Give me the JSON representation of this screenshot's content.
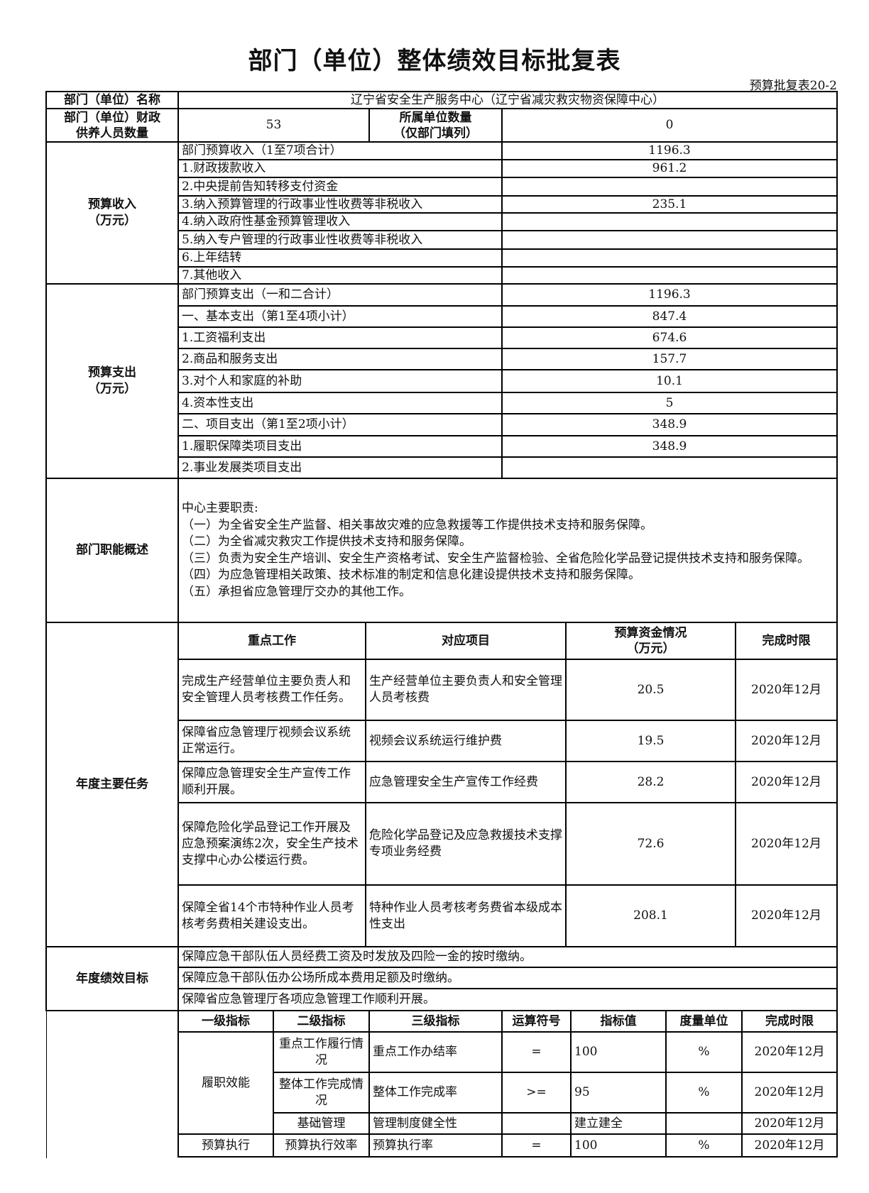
{
  "title": "部门（单位）整体绩效目标批复表",
  "form_no": "预算批复表20-2",
  "dept": {
    "name_label": "部门（单位）名称",
    "name_value": "辽宁省安全生产服务中心（辽宁省减灾救灾物资保障中心）",
    "staff_label_1": "部门（单位）财政",
    "staff_label_2": "供养人员数量",
    "staff_value": "53",
    "sub_label_1": "所属单位数量",
    "sub_label_2": "（仅部门填列）",
    "sub_value": "0"
  },
  "income": {
    "label_1": "预算收入",
    "label_2": "（万元）",
    "rows": [
      {
        "name": "部门预算收入（1至7项合计）",
        "value": "1196.3"
      },
      {
        "name": "1.财政拨款收入",
        "value": "961.2"
      },
      {
        "name": "2.中央提前告知转移支付资金",
        "value": ""
      },
      {
        "name": "3.纳入预算管理的行政事业性收费等非税收入",
        "value": "235.1"
      },
      {
        "name": "4.纳入政府性基金预算管理收入",
        "value": ""
      },
      {
        "name": "5.纳入专户管理的行政事业性收费等非税收入",
        "value": ""
      },
      {
        "name": "6.上年结转",
        "value": ""
      },
      {
        "name": "7.其他收入",
        "value": ""
      }
    ]
  },
  "expense": {
    "label_1": "预算支出",
    "label_2": "（万元）",
    "rows": [
      {
        "name": "部门预算支出（一和二合计）",
        "value": "1196.3"
      },
      {
        "name": "一、基本支出（第1至4项小计）",
        "value": "847.4"
      },
      {
        "name": "1.工资福利支出",
        "value": "674.6"
      },
      {
        "name": "2.商品和服务支出",
        "value": "157.7"
      },
      {
        "name": "3.对个人和家庭的补助",
        "value": "10.1"
      },
      {
        "name": "4.资本性支出",
        "value": "5"
      },
      {
        "name": "二、项目支出（第1至2项小计）",
        "value": "348.9"
      },
      {
        "name": "1.履职保障类项目支出",
        "value": "348.9"
      },
      {
        "name": "2.事业发展类项目支出",
        "value": ""
      }
    ]
  },
  "functions": {
    "label": "部门职能概述",
    "lines": [
      "中心主要职责:",
      "（一）为全省安全生产监督、相关事故灾难的应急救援等工作提供技术支持和服务保障。",
      "（二）为全省减灾救灾工作提供技术支持和服务保障。",
      "（三）负责为安全生产培训、安全生产资格考试、安全生产监督检验、全省危险化学品登记提供技术支持和服务保障。",
      "（四）为应急管理相关政策、技术标准的制定和信息化建设提供技术支持和服务保障。",
      "（五）承担省应急管理厅交办的其他工作。"
    ]
  },
  "tasks": {
    "label": "年度主要任务",
    "headers": [
      "重点工作",
      "对应项目",
      "预算资金情况",
      "（万元）",
      "完成时限"
    ],
    "rows": [
      {
        "work": "完成生产经营单位主要负责人和安全管理人员考核费工作任务。",
        "project": "生产经营单位主要负责人和安全管理人员考核费",
        "amount": "20.5",
        "deadline": "2020年12月"
      },
      {
        "work": "保障省应急管理厅视频会议系统正常运行。",
        "project": "视频会议系统运行维护费",
        "amount": "19.5",
        "deadline": "2020年12月"
      },
      {
        "work": "保障应急管理安全生产宣传工作顺利开展。",
        "project": "应急管理安全生产宣传工作经费",
        "amount": "28.2",
        "deadline": "2020年12月"
      },
      {
        "work": "保障危险化学品登记工作开展及应急预案演练2次，安全生产技术支撑中心办公楼运行费。",
        "project": "危险化学品登记及应急救援技术支撑专项业务经费",
        "amount": "72.6",
        "deadline": "2020年12月"
      },
      {
        "work": "保障全省14个市特种作业人员考核考务费相关建设支出。",
        "project": "特种作业人员考核考务费省本级成本性支出",
        "amount": "208.1",
        "deadline": "2020年12月"
      }
    ]
  },
  "goals": {
    "label": "年度绩效目标",
    "rows": [
      "保障应急干部队伍人员经费工资及时发放及四险一金的按时缴纳。",
      "保障应急干部队伍办公场所成本费用足额及时缴纳。",
      "保障省应急管理厅各项应急管理工作顺利开展。"
    ]
  },
  "indicators": {
    "headers": [
      "一级指标",
      "二级指标",
      "三级指标",
      "运算符号",
      "指标值",
      "度量单位",
      "完成时限"
    ],
    "level1": [
      "履职效能",
      "预算执行"
    ],
    "rows": [
      {
        "l2": "重点工作履行情况",
        "l3": "重点工作办结率",
        "op": "=",
        "value": "100",
        "unit": "%",
        "deadline": "2020年12月"
      },
      {
        "l2": "整体工作完成情况",
        "l3": "整体工作完成率",
        "op": ">=",
        "value": "95",
        "unit": "%",
        "deadline": "2020年12月"
      },
      {
        "l2": "基础管理",
        "l3": "管理制度健全性",
        "op": "",
        "value": "建立建全",
        "unit": "",
        "deadline": "2020年12月"
      },
      {
        "l2": "预算执行效率",
        "l3": "预算执行率",
        "op": "=",
        "value": "100",
        "unit": "%",
        "deadline": "2020年12月"
      }
    ]
  }
}
